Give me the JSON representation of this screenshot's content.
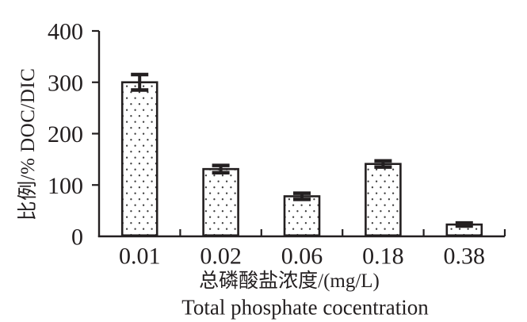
{
  "page": {
    "background": "#ffffff"
  },
  "chart_data": {
    "type": "bar",
    "categories": [
      "0.01",
      "0.02",
      "0.06",
      "0.18",
      "0.38"
    ],
    "values": [
      300,
      131,
      78,
      141,
      23
    ],
    "errors": [
      15,
      7,
      6,
      6,
      3
    ],
    "title": "",
    "xlabel_zh": "总磷酸盐浓度/(mg/L)",
    "xlabel_en": "Total phosphate cocentration",
    "ylabel": "比例/% DOC/DIC",
    "yticks": [
      0,
      100,
      200,
      300,
      400
    ],
    "ylim": [
      0,
      400
    ],
    "grid": false,
    "legend": "none",
    "bar_fill": "white-with-dot-pattern",
    "bar_fill_color": "#ffffff",
    "dot_color": "#3f3f3f",
    "axis_color": "#231f20"
  }
}
